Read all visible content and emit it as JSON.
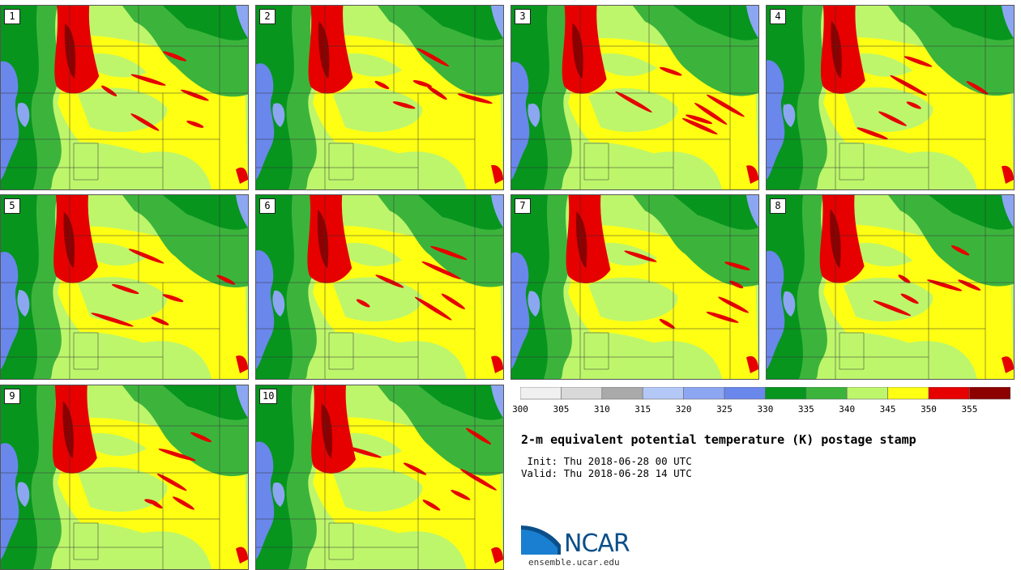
{
  "panels": [
    {
      "label": "1"
    },
    {
      "label": "2"
    },
    {
      "label": "3"
    },
    {
      "label": "4"
    },
    {
      "label": "5"
    },
    {
      "label": "6"
    },
    {
      "label": "7"
    },
    {
      "label": "8"
    },
    {
      "label": "9"
    },
    {
      "label": "10"
    }
  ],
  "colorbar": {
    "levels": [
      "300",
      "305",
      "310",
      "315",
      "320",
      "325",
      "330",
      "335",
      "340",
      "345",
      "350",
      "355"
    ],
    "colors": [
      "#f0f0f0",
      "#d9d9d9",
      "#aaaaaa",
      "#b4c8f8",
      "#8ca6f2",
      "#6a87ec",
      "#07951e",
      "#3cb43c",
      "#bdf66b",
      "#ffff14",
      "#e60000",
      "#8c0000"
    ]
  },
  "title": "2-m equivalent potential temperature (K) postage stamp",
  "init": " Init: Thu 2018-06-28 00 UTC",
  "valid": "Valid: Thu 2018-06-28 14 UTC",
  "logo": {
    "text": "NCAR",
    "site": "ensemble.ucar.edu"
  }
}
